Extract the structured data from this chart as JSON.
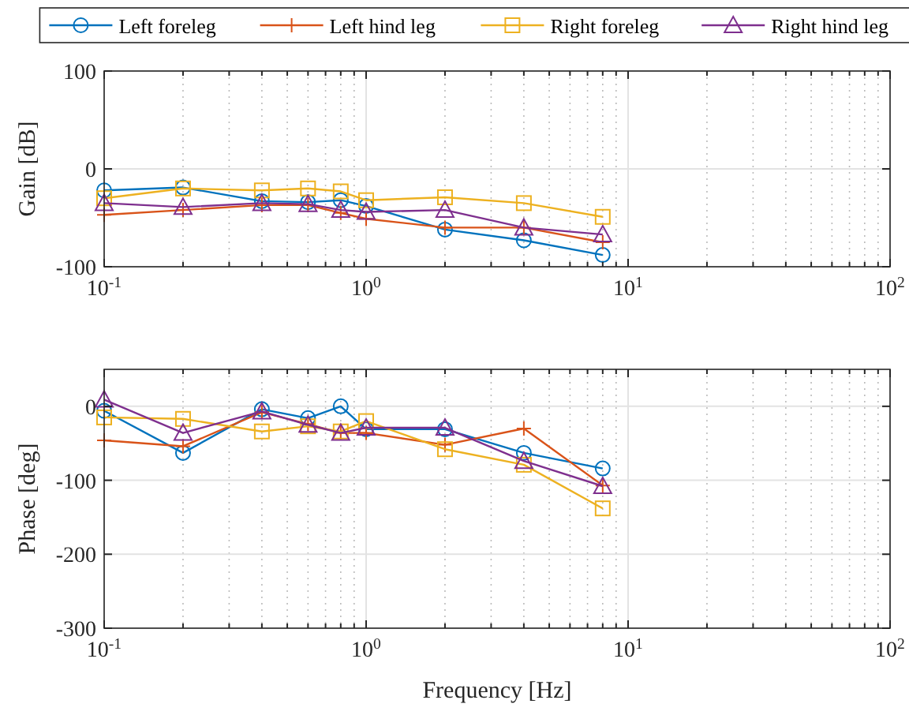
{
  "chart_data": [
    {
      "type": "line",
      "ylabel": "Gain [dB]",
      "x": [
        0.1,
        0.2,
        0.4,
        0.6,
        0.8,
        1,
        2,
        4,
        8
      ],
      "log": "x",
      "xlim": [
        0.1,
        100
      ],
      "xticks": [
        {
          "value": 0.1,
          "label": "10$^{-1}$"
        },
        {
          "value": 1,
          "label": "10$^{0}$"
        },
        {
          "value": 10,
          "label": "10$^{1}$"
        },
        {
          "value": 100,
          "label": "10$^{2}$"
        }
      ],
      "ylim": [
        -100,
        100
      ],
      "yticks": [
        -100,
        0,
        100
      ],
      "grid": true,
      "legend": "top",
      "series": [
        {
          "name": "Left foreleg",
          "color": "#0072bd",
          "marker": "circle",
          "values": [
            -22,
            -19,
            -33,
            -34,
            -32,
            -38,
            -62,
            -73,
            -88
          ]
        },
        {
          "name": "Left hind leg",
          "color": "#d95319",
          "marker": "cross",
          "values": [
            -47,
            -42,
            -37,
            -37,
            -45,
            -51,
            -60,
            -60,
            -75
          ]
        },
        {
          "name": "Right foreleg",
          "color": "#edb120",
          "marker": "square",
          "values": [
            -30,
            -20,
            -22,
            -20,
            -23,
            -32,
            -29,
            -35,
            -49
          ]
        },
        {
          "name": "Right hind leg",
          "color": "#7e2f8e",
          "marker": "triangle",
          "values": [
            -35,
            -39,
            -35,
            -36,
            -42,
            -44,
            -42,
            -60,
            -67
          ]
        }
      ]
    },
    {
      "type": "line",
      "ylabel": "Phase [deg]",
      "xlabel": "Frequency [Hz]",
      "x": [
        0.1,
        0.2,
        0.4,
        0.6,
        0.8,
        1,
        2,
        4,
        8
      ],
      "log": "x",
      "xlim": [
        0.1,
        100
      ],
      "xticks": [
        {
          "value": 0.1,
          "label": "10$^{-1}$"
        },
        {
          "value": 1,
          "label": "10$^{0}$"
        },
        {
          "value": 10,
          "label": "10$^{1}$"
        },
        {
          "value": 100,
          "label": "10$^{2}$"
        }
      ],
      "ylim": [
        -300,
        50
      ],
      "yticks": [
        -300,
        -200,
        -100,
        0
      ],
      "grid": true,
      "series": [
        {
          "color": "#0072bd",
          "marker": "circle",
          "values": [
            -6,
            -63,
            -4,
            -16,
            0,
            -31,
            -31,
            -63,
            -84
          ]
        },
        {
          "color": "#d95319",
          "marker": "cross",
          "values": [
            -46,
            -54,
            -8,
            -24,
            -36,
            -36,
            -52,
            -30,
            -107
          ]
        },
        {
          "color": "#edb120",
          "marker": "square",
          "values": [
            -15,
            -17,
            -34,
            -27,
            -34,
            -20,
            -58,
            -79,
            -138
          ]
        },
        {
          "color": "#7e2f8e",
          "marker": "triangle",
          "values": [
            9,
            -36,
            -7,
            -25,
            -36,
            -29,
            -29,
            -74,
            -108
          ]
        }
      ]
    }
  ]
}
